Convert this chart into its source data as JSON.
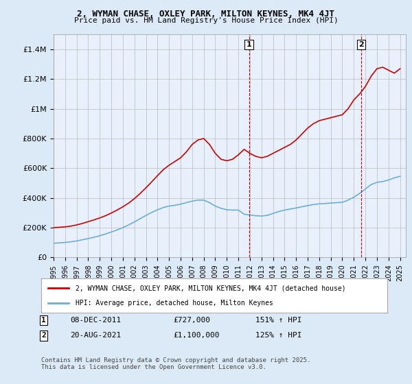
{
  "title1": "2, WYMAN CHASE, OXLEY PARK, MILTON KEYNES, MK4 4JT",
  "title2": "Price paid vs. HM Land Registry's House Price Index (HPI)",
  "legend1": "2, WYMAN CHASE, OXLEY PARK, MILTON KEYNES, MK4 4JT (detached house)",
  "legend2": "HPI: Average price, detached house, Milton Keynes",
  "footnote": "Contains HM Land Registry data © Crown copyright and database right 2025.\nThis data is licensed under the Open Government Licence v3.0.",
  "annotation1": {
    "label": "1",
    "date_str": "08-DEC-2011",
    "price": "£727,000",
    "pct": "151% ↑ HPI",
    "x_year": 2011.92
  },
  "annotation2": {
    "label": "2",
    "date_str": "20-AUG-2021",
    "price": "£1,100,000",
    "pct": "125% ↑ HPI",
    "x_year": 2021.63
  },
  "ylim": [
    0,
    1500000
  ],
  "xlim_start": 1995.0,
  "xlim_end": 2025.5,
  "bg_color": "#dce9f7",
  "plot_bg": "#e8f0fb",
  "red_color": "#cc0000",
  "blue_color": "#6baed6",
  "grid_color": "#bbbbbb"
}
